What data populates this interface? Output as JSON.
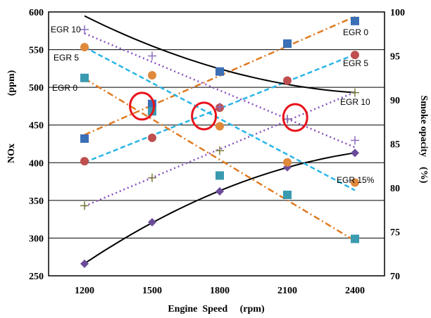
{
  "chart_data": {
    "type": "line",
    "xlabel": "Engine  Speed     (rpm)",
    "ylabel_left": "NOx",
    "ylabel_left_unit": "(ppm)",
    "ylabel_right": "Smoke opacity    (%)",
    "x": [
      1200,
      1500,
      1800,
      2100,
      2400
    ],
    "left_axis": {
      "min": 250,
      "max": 600,
      "ticks": [
        250,
        300,
        350,
        400,
        450,
        500,
        550,
        600
      ]
    },
    "right_axis": {
      "min": 70,
      "max": 100,
      "ticks": [
        70,
        75,
        80,
        85,
        90,
        95,
        100
      ]
    },
    "x_ticks": [
      1200,
      1500,
      1800,
      2100,
      2400
    ],
    "grid": "horizontal",
    "series": [
      {
        "group": "NOx",
        "axis": "left",
        "label": "EGR 0",
        "marker": "square",
        "color": "#e07b22",
        "marker_color": "#3b6fb6",
        "line": "dashdot",
        "values": [
          432,
          478,
          521,
          558,
          588
        ]
      },
      {
        "group": "NOx",
        "axis": "left",
        "label": "EGR 5",
        "marker": "circle",
        "color": "#29b6e8",
        "marker_color": "#bf4f4f",
        "line": "dashed",
        "values": [
          402,
          433,
          473,
          509,
          543
        ]
      },
      {
        "group": "NOx",
        "axis": "left",
        "label": "EGR 10",
        "marker": "plus",
        "color": "#8a4fbf",
        "marker_color": "#7a7a3a",
        "line": "dotted",
        "values": [
          343,
          380,
          416,
          458,
          493
        ]
      },
      {
        "group": "NOx",
        "axis": "left",
        "label": "EGR 15%",
        "marker": "diamond",
        "color": "#000000",
        "marker_color": "#6b4c9a",
        "line": "solid",
        "values": [
          266,
          321,
          362,
          394,
          413
        ]
      },
      {
        "group": "Smoke",
        "axis": "right",
        "label": "EGR 0",
        "marker": "square",
        "color": "#e07b22",
        "marker_color": "#3a9ab0",
        "line": "dashdot",
        "values": [
          92.5,
          88.7,
          81.4,
          79.2,
          74.2
        ]
      },
      {
        "group": "Smoke",
        "axis": "right",
        "label": "EGR 5",
        "marker": "circle",
        "color": "#29b6e8",
        "marker_color": "#e0893a",
        "line": "dashed",
        "values": [
          96.0,
          92.8,
          87.0,
          82.9,
          80.6
        ]
      },
      {
        "group": "Smoke",
        "axis": "right",
        "label": "EGR 10",
        "marker": "plus",
        "color": "#8a4fbf",
        "marker_color": "#8a6fbf",
        "line": "dotted",
        "values": [
          98.0,
          95.0,
          89.2,
          87.8,
          85.4
        ]
      },
      {
        "group": "Smoke",
        "axis": "right",
        "label": "",
        "marker": "none",
        "color": "#000000",
        "marker_color": "#000000",
        "line": "solid",
        "values": [
          99.3,
          96.7,
          93.3,
          91.5,
          91.0
        ]
      }
    ],
    "annotations": [
      {
        "text": "EGR 10"
      },
      {
        "text": "EGR 5"
      },
      {
        "text": "EGR 0"
      },
      {
        "text": "EGR 0"
      },
      {
        "text": "EGR 5"
      },
      {
        "text": "EGR 10"
      },
      {
        "text": "EGR 15%"
      }
    ],
    "highlight_circles": [
      {
        "x": 1455,
        "y_left": 475,
        "color": "#e8121a"
      },
      {
        "x": 1730,
        "y_left": 462,
        "color": "#e8121a"
      },
      {
        "x": 2135,
        "y_left": 460,
        "color": "#e8121a"
      }
    ]
  }
}
